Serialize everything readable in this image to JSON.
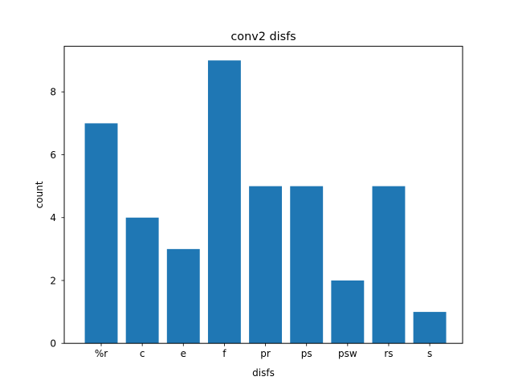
{
  "chart_data": {
    "type": "bar",
    "title": "conv2 disfs",
    "xlabel": "disfs",
    "ylabel": "count",
    "categories": [
      "%r",
      "c",
      "e",
      "f",
      "pr",
      "ps",
      "psw",
      "rs",
      "s"
    ],
    "values": [
      7,
      4,
      3,
      9,
      5,
      5,
      2,
      5,
      1
    ],
    "ylim": [
      0,
      9.45
    ],
    "yticks": [
      0,
      2,
      4,
      6,
      8
    ],
    "grid": false,
    "colors": {
      "bar": "#1f77b4",
      "axes": "#000000",
      "background": "#ffffff"
    }
  }
}
